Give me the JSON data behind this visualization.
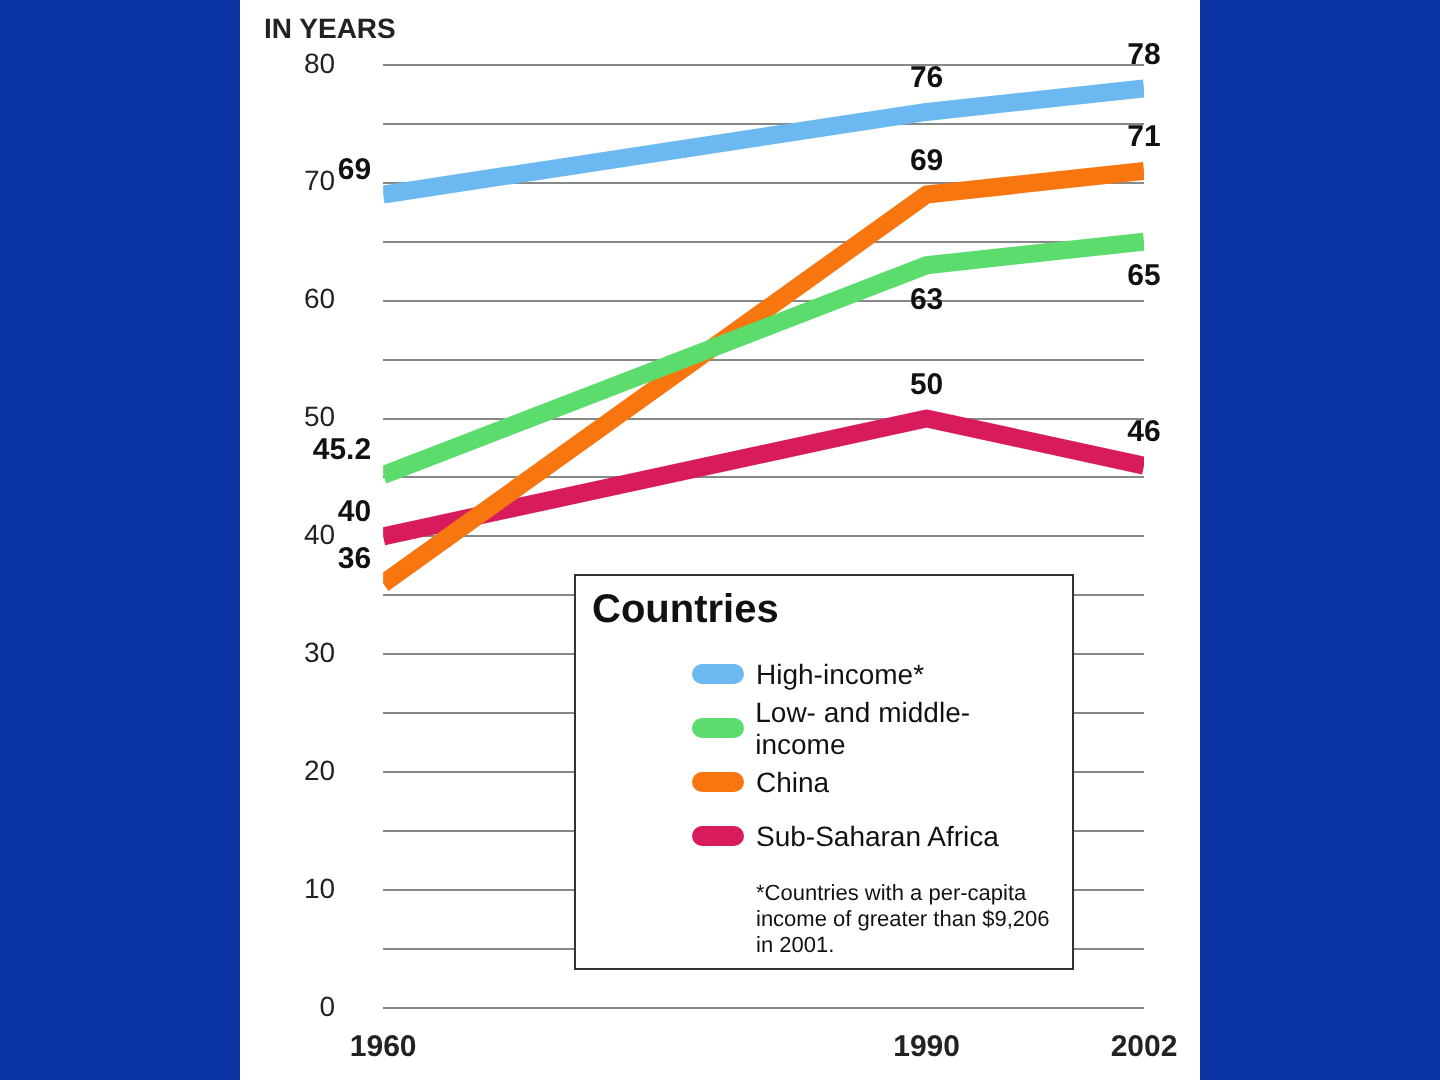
{
  "chart_data": {
    "type": "line",
    "ylabel": "IN YEARS",
    "legend_title": "Countries",
    "x": [
      1960,
      1990,
      2002
    ],
    "xlim": [
      1960,
      2002
    ],
    "xticks": [
      1960,
      1990,
      2002
    ],
    "ylim": [
      0,
      80
    ],
    "yticks": [
      0,
      {
        "value": 5,
        "label": null
      },
      10,
      {
        "value": 15,
        "label": null
      },
      20,
      {
        "value": 25,
        "label": null
      },
      30,
      {
        "value": 35,
        "label": null
      },
      40,
      {
        "value": 45,
        "label": null
      },
      50,
      {
        "value": 55,
        "label": null
      },
      60,
      {
        "value": 65,
        "label": null
      },
      70,
      {
        "value": 75,
        "label": null
      },
      80
    ],
    "grid": "y",
    "legend": "bottom right",
    "marker": "none",
    "line_style": "solid",
    "data_labels": true,
    "series": [
      {
        "name": "High-income*",
        "color": "#6cb8f0",
        "values": [
          69,
          76,
          78
        ]
      },
      {
        "name": "Low- and middle-income",
        "color": "#5ddc6e",
        "values": [
          45.2,
          63,
          65
        ]
      },
      {
        "name": "China",
        "color": "#f7760f",
        "values": [
          36,
          69,
          71
        ]
      },
      {
        "name": "Sub-Saharan Africa",
        "color": "#d81b5c",
        "values": [
          40,
          50,
          46
        ]
      }
    ],
    "annotations": [
      "*Countries with a per-capita income of greater than $9,206 in 2001."
    ]
  }
}
